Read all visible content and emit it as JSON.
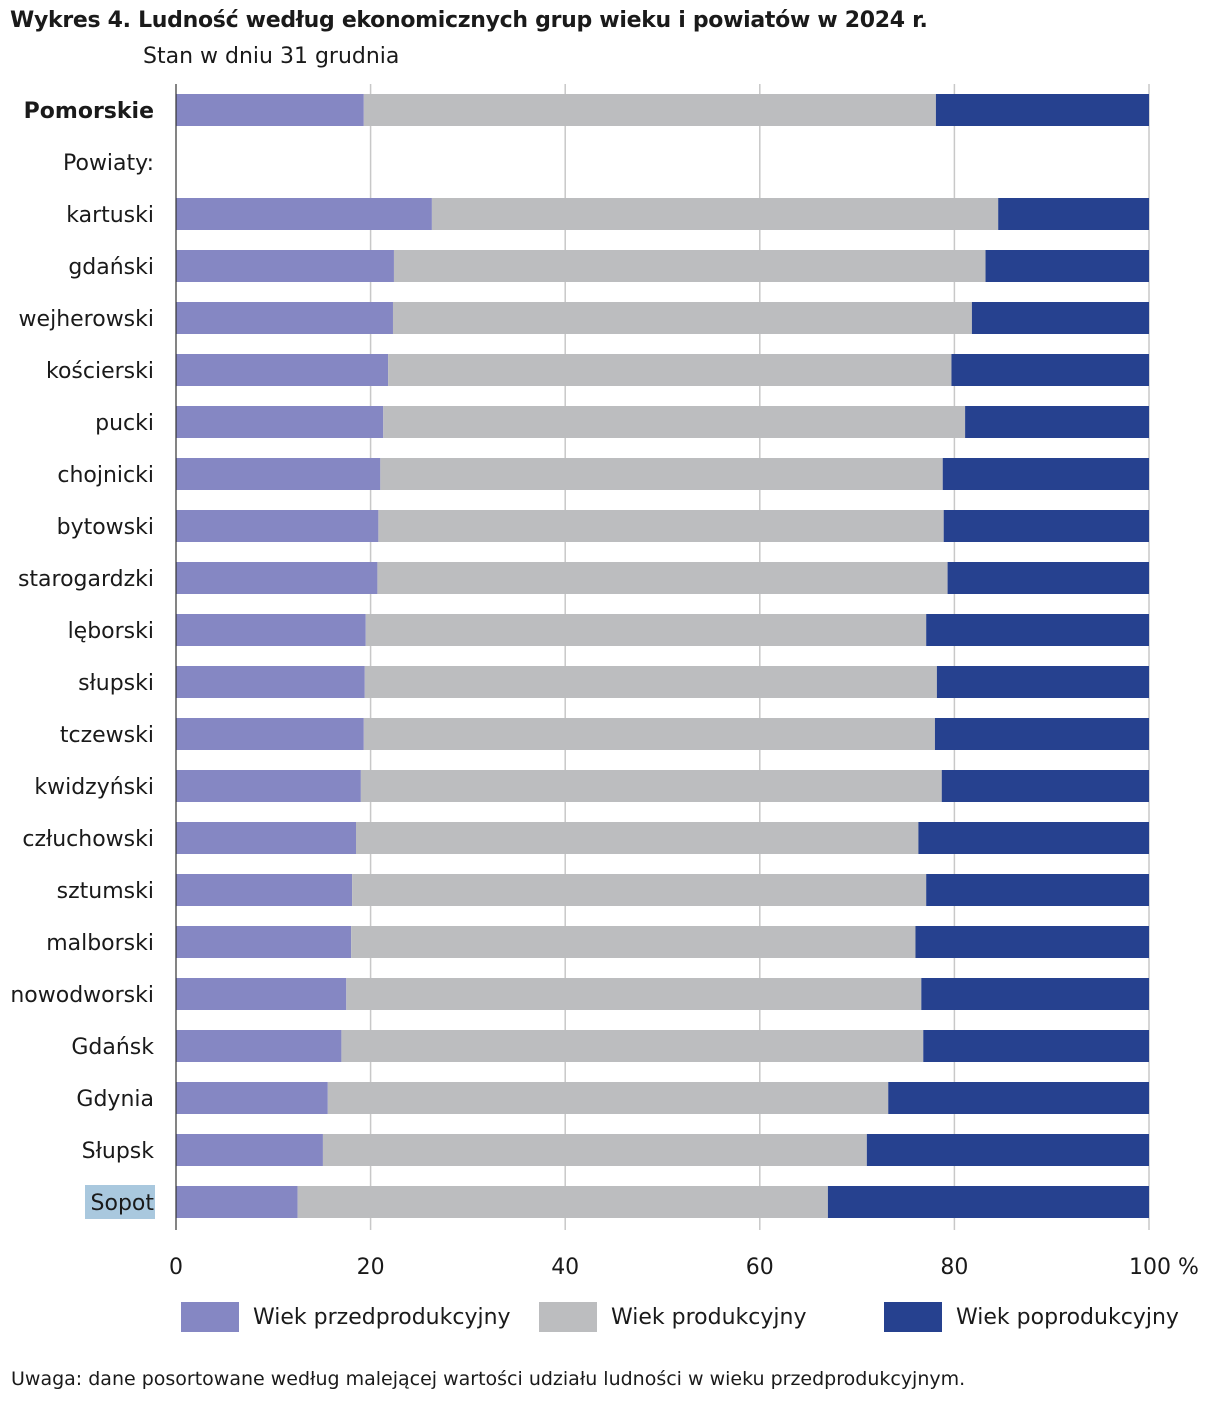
{
  "title": "Wykres 4. Ludność według ekonomicznych grup wieku i powiatów w 2024 r.",
  "subtitle": "Stan w dniu 31 grudnia",
  "note": "Uwaga: dane posortowane według malejącej wartości udziału ludności w wieku przedprodukcyjnym.",
  "colors": {
    "pre": "#8587c3",
    "prod": "#bcbdbf",
    "post": "#26418f",
    "grid": "#c8c8c8",
    "highlight": "#a9c8de"
  },
  "legend": [
    {
      "label": "Wiek przedprodukcyjny",
      "color": "#8587c3"
    },
    {
      "label": "Wiek produkcyjny",
      "color": "#bcbdbf"
    },
    {
      "label": "Wiek poprodukcyjny",
      "color": "#26418f"
    }
  ],
  "chart_data": {
    "type": "bar",
    "orientation": "horizontal",
    "stacked": true,
    "xlim": [
      0,
      100
    ],
    "x_ticks": [
      "0",
      "20",
      "40",
      "60",
      "80",
      "100 %"
    ],
    "grid": true,
    "legend_position": "bottom",
    "series_names": [
      "Wiek przedprodukcyjny",
      "Wiek produkcyjny",
      "Wiek poprodukcyjny"
    ],
    "rows": [
      {
        "label": "Pomorskie",
        "bold": true,
        "values": [
          19.3,
          58.8,
          21.9
        ]
      },
      {
        "label": "Powiaty:",
        "header": true,
        "values": null
      },
      {
        "label": "kartuski",
        "values": [
          26.3,
          58.2,
          15.5
        ]
      },
      {
        "label": "gdański",
        "values": [
          22.4,
          60.8,
          16.8
        ]
      },
      {
        "label": "wejherowski",
        "values": [
          22.3,
          59.5,
          18.2
        ]
      },
      {
        "label": "kościerski",
        "values": [
          21.8,
          57.9,
          20.3
        ]
      },
      {
        "label": "pucki",
        "values": [
          21.3,
          59.8,
          18.9
        ]
      },
      {
        "label": "chojnicki",
        "values": [
          21.0,
          57.8,
          21.2
        ]
      },
      {
        "label": "bytowski",
        "values": [
          20.8,
          58.1,
          21.1
        ]
      },
      {
        "label": "starogardzki",
        "values": [
          20.7,
          58.6,
          20.7
        ]
      },
      {
        "label": "lęborski",
        "values": [
          19.5,
          57.6,
          22.9
        ]
      },
      {
        "label": "słupski",
        "values": [
          19.4,
          58.8,
          21.8
        ]
      },
      {
        "label": "tczewski",
        "values": [
          19.3,
          58.7,
          22.0
        ]
      },
      {
        "label": "kwidzyński",
        "values": [
          19.0,
          59.7,
          21.3
        ]
      },
      {
        "label": "człuchowski",
        "values": [
          18.5,
          57.8,
          23.7
        ]
      },
      {
        "label": "sztumski",
        "values": [
          18.1,
          59.0,
          22.9
        ]
      },
      {
        "label": "malborski",
        "values": [
          18.0,
          58.0,
          24.0
        ]
      },
      {
        "label": "nowodworski",
        "values": [
          17.5,
          59.1,
          23.4
        ]
      },
      {
        "label": "Gdańsk",
        "values": [
          17.0,
          59.8,
          23.2
        ]
      },
      {
        "label": "Gdynia",
        "values": [
          15.6,
          57.6,
          26.8
        ]
      },
      {
        "label": "Słupsk",
        "values": [
          15.1,
          55.9,
          29.0
        ]
      },
      {
        "label": "Sopot",
        "highlight": true,
        "values": [
          12.5,
          54.5,
          33.0
        ]
      }
    ]
  }
}
